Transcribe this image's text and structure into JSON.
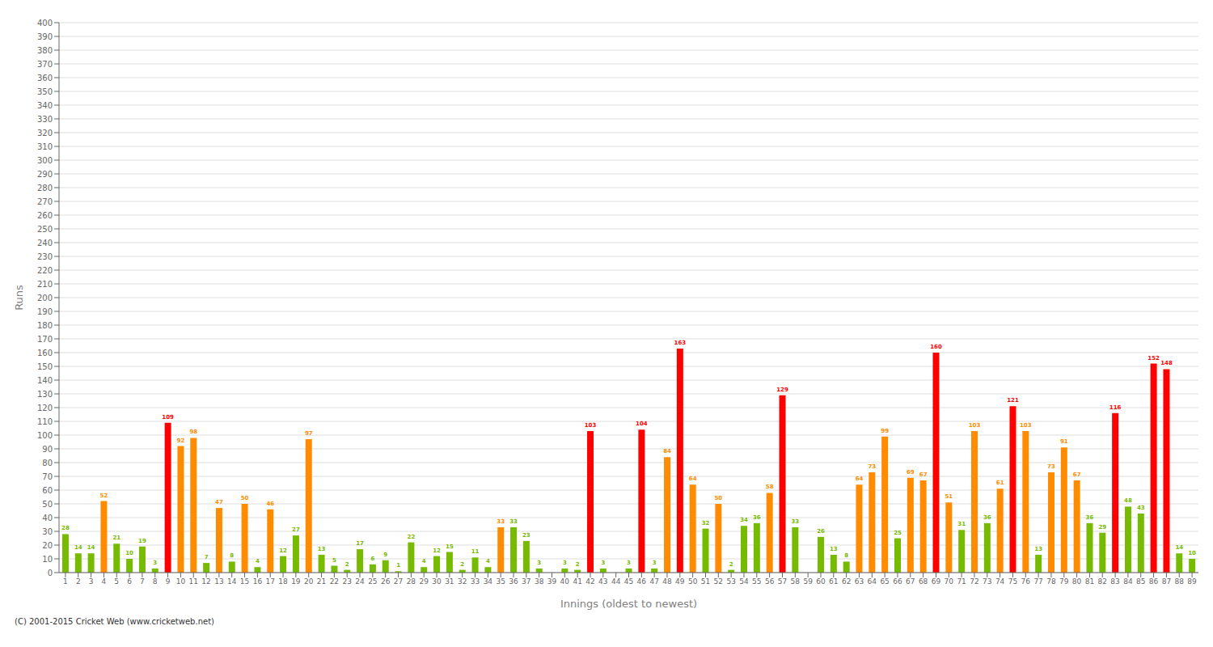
{
  "chart_data": {
    "type": "bar",
    "xlabel": "Innings (oldest to newest)",
    "ylabel": "Runs",
    "annotations": [
      "(C) 2001-2015 Cricket Web (www.cricketweb.net)"
    ],
    "categories": [
      "1",
      "2",
      "3",
      "4",
      "5",
      "6",
      "7",
      "8",
      "9",
      "10",
      "11",
      "12",
      "13",
      "14",
      "15",
      "16",
      "17",
      "18",
      "19",
      "20",
      "21",
      "22",
      "23",
      "24",
      "25",
      "26",
      "27",
      "28",
      "29",
      "30",
      "31",
      "32",
      "33",
      "34",
      "35",
      "36",
      "37",
      "38",
      "39",
      "40",
      "41",
      "42",
      "43",
      "44",
      "45",
      "46",
      "47",
      "48",
      "49",
      "50",
      "51",
      "52",
      "53",
      "54",
      "55",
      "56",
      "57",
      "58",
      "59",
      "60",
      "61",
      "62",
      "63",
      "64",
      "65",
      "66",
      "67",
      "68",
      "69",
      "70",
      "71",
      "72",
      "73",
      "74",
      "75",
      "76",
      "77",
      "78",
      "79",
      "80",
      "81",
      "82",
      "83",
      "84",
      "85",
      "86",
      "87",
      "88",
      "89"
    ],
    "values": [
      28,
      14,
      14,
      52,
      21,
      10,
      19,
      3,
      109,
      92,
      98,
      7,
      47,
      8,
      50,
      4,
      46,
      12,
      27,
      97,
      13,
      5,
      2,
      17,
      6,
      9,
      1,
      22,
      4,
      12,
      15,
      2,
      11,
      4,
      33,
      33,
      23,
      3,
      0,
      3,
      2,
      103,
      3,
      0,
      3,
      104,
      3,
      84,
      163,
      64,
      32,
      50,
      2,
      34,
      36,
      58,
      129,
      33,
      0,
      26,
      13,
      8,
      64,
      73,
      99,
      25,
      69,
      67,
      160,
      51,
      31,
      103,
      36,
      61,
      121,
      103,
      13,
      73,
      91,
      67,
      36,
      29,
      116,
      48,
      43,
      152,
      148,
      14,
      10
    ],
    "colors": [
      "#77BB00",
      "#77BB00",
      "#77BB00",
      "#FF8C00",
      "#77BB00",
      "#77BB00",
      "#77BB00",
      "#77BB00",
      "#FF0000",
      "#FF8C00",
      "#FF8C00",
      "#77BB00",
      "#FF8C00",
      "#77BB00",
      "#FF8C00",
      "#77BB00",
      "#FF8C00",
      "#77BB00",
      "#77BB00",
      "#FF8C00",
      "#77BB00",
      "#77BB00",
      "#77BB00",
      "#77BB00",
      "#77BB00",
      "#77BB00",
      "#77BB00",
      "#77BB00",
      "#77BB00",
      "#77BB00",
      "#77BB00",
      "#77BB00",
      "#77BB00",
      "#77BB00",
      "#FF8C00",
      "#77BB00",
      "#77BB00",
      "#77BB00",
      "#77BB00",
      "#77BB00",
      "#77BB00",
      "#FF0000",
      "#77BB00",
      "#77BB00",
      "#77BB00",
      "#FF0000",
      "#77BB00",
      "#FF8C00",
      "#FF0000",
      "#FF8C00",
      "#77BB00",
      "#FF8C00",
      "#77BB00",
      "#77BB00",
      "#77BB00",
      "#FF8C00",
      "#FF0000",
      "#77BB00",
      "#77BB00",
      "#77BB00",
      "#77BB00",
      "#77BB00",
      "#FF8C00",
      "#FF8C00",
      "#FF8C00",
      "#77BB00",
      "#FF8C00",
      "#FF8C00",
      "#FF0000",
      "#FF8C00",
      "#77BB00",
      "#FF8C00",
      "#77BB00",
      "#FF8C00",
      "#FF0000",
      "#FF8C00",
      "#77BB00",
      "#FF8C00",
      "#FF8C00",
      "#FF8C00",
      "#77BB00",
      "#77BB00",
      "#FF0000",
      "#77BB00",
      "#77BB00",
      "#FF0000",
      "#FF0000",
      "#77BB00",
      "#77BB00"
    ],
    "ylim": [
      0,
      400
    ],
    "yticks": [
      0,
      10,
      20,
      30,
      40,
      50,
      60,
      70,
      80,
      90,
      100,
      110,
      120,
      130,
      140,
      150,
      160,
      170,
      180,
      190,
      200,
      210,
      220,
      230,
      240,
      250,
      260,
      270,
      280,
      290,
      300,
      310,
      320,
      330,
      340,
      350,
      360,
      370,
      380,
      390,
      400
    ],
    "grid": true,
    "data_labels": true
  }
}
